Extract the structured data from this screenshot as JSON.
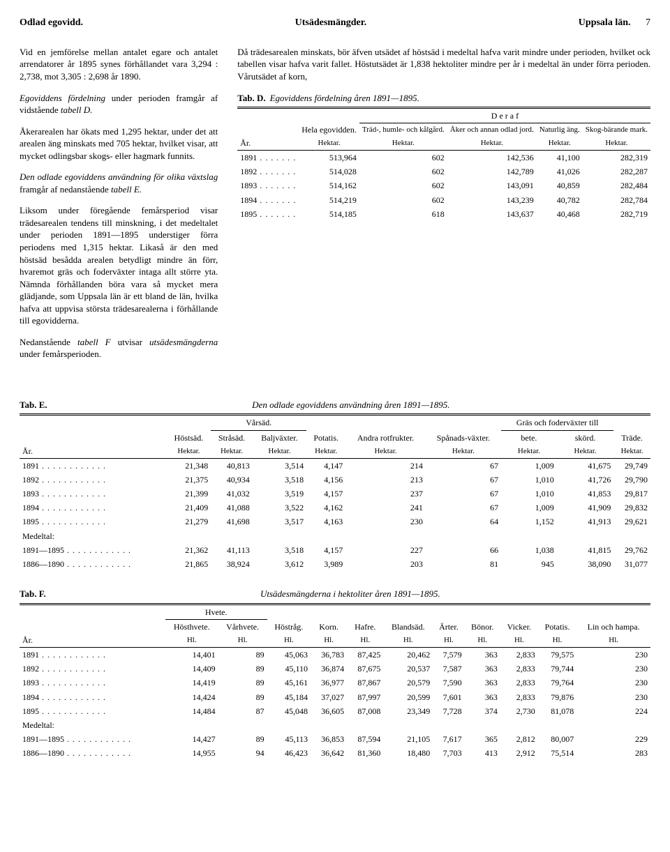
{
  "header": {
    "left": "Odlad egovidd.",
    "center": "Utsädesmängder.",
    "right": "Uppsala län.",
    "page": "7"
  },
  "leftcol": {
    "p1a": "Vid en jemförelse mellan antalet egare och antalet arrendatorer år 1895 synes förhållandet vara 3,294 : 2,738, mot 3,305 : 2,698 år 1890.",
    "p2a": "Egoviddens fördelning",
    "p2b": " under perioden framgår af vidstående ",
    "p2c": "tabell D.",
    "p3": "Åkerarealen har ökats med 1,295 hektar, under det att arealen äng minskats med 705 hektar, hvilket visar, att mycket odlingsbar skogs- eller hagmark funnits.",
    "p4a": "Den odlade egoviddens användning för olika växtslag",
    "p4b": " framgår af nedanstående ",
    "p4c": "tabell E.",
    "p5": "Liksom under föregående femårsperiod visar trädesarealen tendens till minskning, i det medeltalet under perioden 1891—1895 understiger förra periodens med 1,315 hektar. Likaså är den med höstsäd besådda arealen betydligt mindre än förr, hvaremot gräs och foderväxter intaga allt större yta. Nämnda förhållanden böra vara så mycket mera glädjande, som Uppsala län är ett bland de län, hvilka hafva att uppvisa största trädesarealerna i förhållande till egovidderna.",
    "p6a": "Nedanstående ",
    "p6b": "tabell F",
    "p6c": " utvisar ",
    "p6d": "utsädesmängderna",
    "p6e": " under femårsperioden."
  },
  "rightcol": {
    "p1": "Då trädesarealen minskats, bör äfven utsädet af höstsäd i medeltal hafva varit mindre under perioden, hvilket ock tabellen visar hafva varit fallet. Höstutsädet är 1,838 hektoliter mindre per år i medeltal än under förra perioden. Vårutsädet af korn,",
    "tabD_label": "Tab. D.",
    "tabD_caption": "Egoviddens fördelning åren 1891—1895."
  },
  "tabD": {
    "col_year": "År.",
    "col_hela": "Hela egovidden.",
    "deraf": "D e r a f",
    "col_trad": "Träd-, humle- och kålgård.",
    "col_aker": "Åker och annan odlad jord.",
    "col_ang": "Naturlig äng.",
    "col_skog": "Skog-bärande mark.",
    "unit": "Hektar.",
    "rows": [
      {
        "y": "1891",
        "a": "513,964",
        "b": "602",
        "c": "142,536",
        "d": "41,100",
        "e": "282,319"
      },
      {
        "y": "1892",
        "a": "514,028",
        "b": "602",
        "c": "142,789",
        "d": "41,026",
        "e": "282,287"
      },
      {
        "y": "1893",
        "a": "514,162",
        "b": "602",
        "c": "143,091",
        "d": "40,859",
        "e": "282,484"
      },
      {
        "y": "1894",
        "a": "514,219",
        "b": "602",
        "c": "143,239",
        "d": "40,782",
        "e": "282,784"
      },
      {
        "y": "1895",
        "a": "514,185",
        "b": "618",
        "c": "143,637",
        "d": "40,468",
        "e": "282,719"
      }
    ]
  },
  "tabE": {
    "label": "Tab. E.",
    "caption": "Den odlade egoviddens användning åren 1891—1895.",
    "col_year": "År.",
    "col_host": "Höstsäd.",
    "varsad": "Vårsäd.",
    "col_stra": "Stråsäd.",
    "col_balj": "Baljväxter.",
    "col_pot": "Potatis.",
    "col_rot": "Andra rotfrukter.",
    "col_span": "Spånads-växter.",
    "gras": "Gräs och foderväxter till",
    "col_bete": "bete.",
    "col_skord": "skörd.",
    "col_trade": "Träde.",
    "unit": "Hektar.",
    "rows": [
      {
        "y": "1891",
        "a": "21,348",
        "b": "40,813",
        "c": "3,514",
        "d": "4,147",
        "e": "214",
        "f": "67",
        "g": "1,009",
        "h": "41,675",
        "i": "29,749"
      },
      {
        "y": "1892",
        "a": "21,375",
        "b": "40,934",
        "c": "3,518",
        "d": "4,156",
        "e": "213",
        "f": "67",
        "g": "1,010",
        "h": "41,726",
        "i": "29,790"
      },
      {
        "y": "1893",
        "a": "21,399",
        "b": "41,032",
        "c": "3,519",
        "d": "4,157",
        "e": "237",
        "f": "67",
        "g": "1,010",
        "h": "41,853",
        "i": "29,817"
      },
      {
        "y": "1894",
        "a": "21,409",
        "b": "41,088",
        "c": "3,522",
        "d": "4,162",
        "e": "241",
        "f": "67",
        "g": "1,009",
        "h": "41,909",
        "i": "29,832"
      },
      {
        "y": "1895",
        "a": "21,279",
        "b": "41,698",
        "c": "3,517",
        "d": "4,163",
        "e": "230",
        "f": "64",
        "g": "1,152",
        "h": "41,913",
        "i": "29,621"
      }
    ],
    "medel_label": "Medeltal:",
    "medel": [
      {
        "y": "1891—1895",
        "a": "21,362",
        "b": "41,113",
        "c": "3,518",
        "d": "4,157",
        "e": "227",
        "f": "66",
        "g": "1,038",
        "h": "41,815",
        "i": "29,762"
      },
      {
        "y": "1886—1890",
        "a": "21,865",
        "b": "38,924",
        "c": "3,612",
        "d": "3,989",
        "e": "203",
        "f": "81",
        "g": "945",
        "h": "38,090",
        "i": "31,077"
      }
    ]
  },
  "tabF": {
    "label": "Tab. F.",
    "caption": "Utsädesmängderna i hektoliter åren 1891—1895.",
    "col_year": "År.",
    "hvete": "Hvete.",
    "col_hhv": "Hösthvete.",
    "col_vhv": "Vårhvete.",
    "col_hrag": "Höstråg.",
    "col_korn": "Korn.",
    "col_hafre": "Hafre.",
    "col_bland": "Blandsäd.",
    "col_arter": "Ärter.",
    "col_bonor": "Bönor.",
    "col_vicker": "Vicker.",
    "col_pot": "Potatis.",
    "col_lin": "Lin och hampa.",
    "unit": "Hl.",
    "rows": [
      {
        "y": "1891",
        "a": "14,401",
        "b": "89",
        "c": "45,063",
        "d": "36,783",
        "e": "87,425",
        "f": "20,462",
        "g": "7,579",
        "h": "363",
        "i": "2,833",
        "j": "79,575",
        "k": "230"
      },
      {
        "y": "1892",
        "a": "14,409",
        "b": "89",
        "c": "45,110",
        "d": "36,874",
        "e": "87,675",
        "f": "20,537",
        "g": "7,587",
        "h": "363",
        "i": "2,833",
        "j": "79,744",
        "k": "230"
      },
      {
        "y": "1893",
        "a": "14,419",
        "b": "89",
        "c": "45,161",
        "d": "36,977",
        "e": "87,867",
        "f": "20,579",
        "g": "7,590",
        "h": "363",
        "i": "2,833",
        "j": "79,764",
        "k": "230"
      },
      {
        "y": "1894",
        "a": "14,424",
        "b": "89",
        "c": "45,184",
        "d": "37,027",
        "e": "87,997",
        "f": "20,599",
        "g": "7,601",
        "h": "363",
        "i": "2,833",
        "j": "79,876",
        "k": "230"
      },
      {
        "y": "1895",
        "a": "14,484",
        "b": "87",
        "c": "45,048",
        "d": "36,605",
        "e": "87,008",
        "f": "23,349",
        "g": "7,728",
        "h": "374",
        "i": "2,730",
        "j": "81,078",
        "k": "224"
      }
    ],
    "medel_label": "Medeltal:",
    "medel": [
      {
        "y": "1891—1895",
        "a": "14,427",
        "b": "89",
        "c": "45,113",
        "d": "36,853",
        "e": "87,594",
        "f": "21,105",
        "g": "7,617",
        "h": "365",
        "i": "2,812",
        "j": "80,007",
        "k": "229"
      },
      {
        "y": "1886—1890",
        "a": "14,955",
        "b": "94",
        "c": "46,423",
        "d": "36,642",
        "e": "81,360",
        "f": "18,480",
        "g": "7,703",
        "h": "413",
        "i": "2,912",
        "j": "75,514",
        "k": "283"
      }
    ]
  }
}
